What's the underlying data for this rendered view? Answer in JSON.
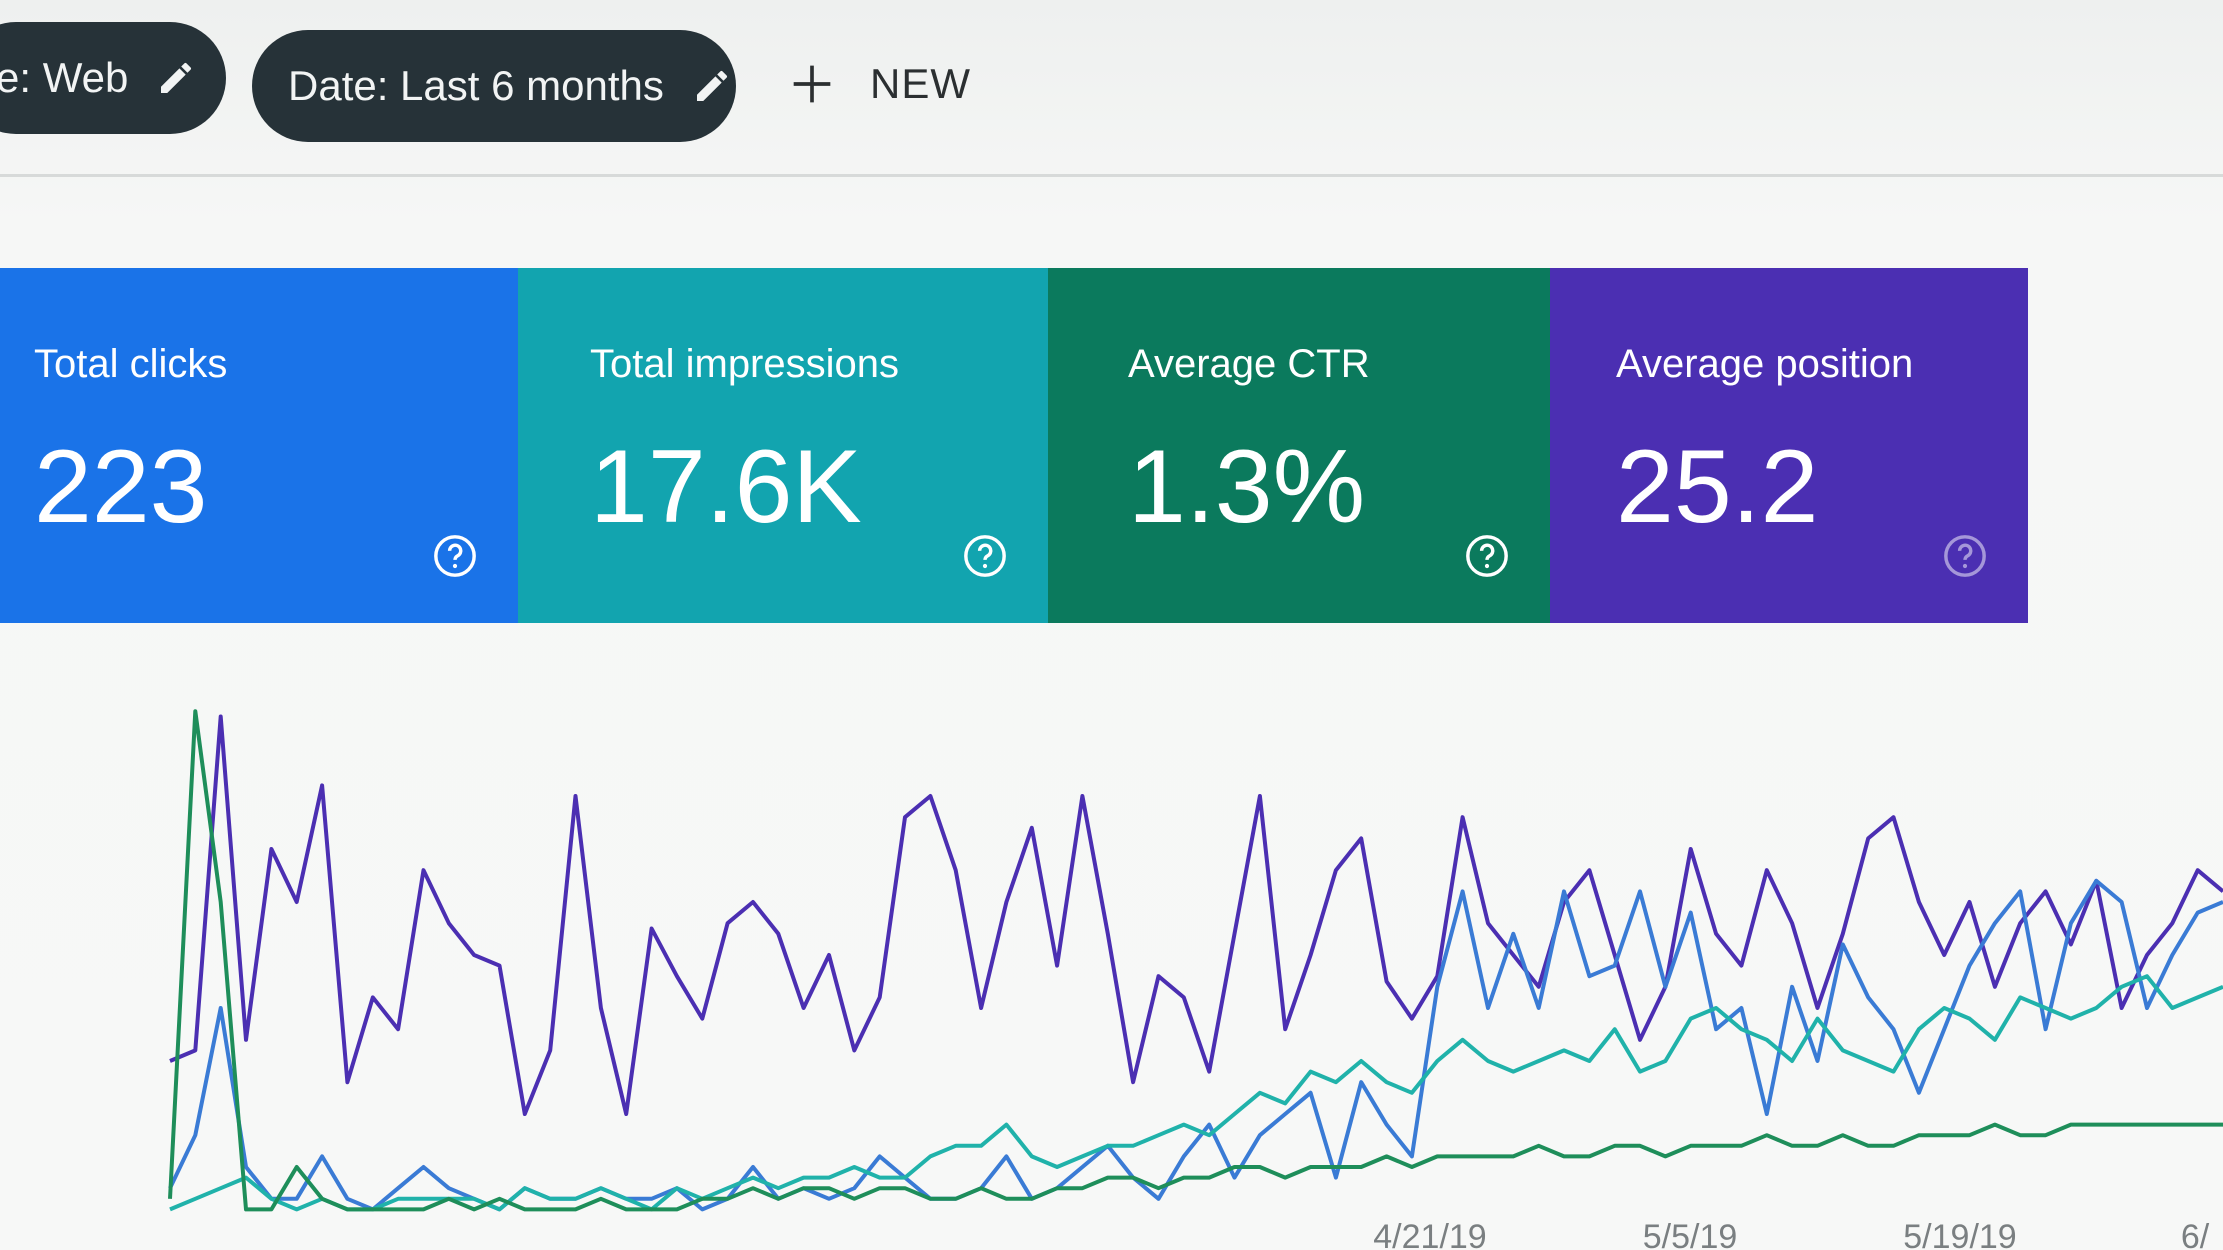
{
  "filters": {
    "type_chip": "e: Web",
    "date_chip": "Date: Last 6 months",
    "new_label": "NEW"
  },
  "metrics": [
    {
      "label": "Total clicks",
      "value": "223",
      "color": "#1a73e8"
    },
    {
      "label": "Total impressions",
      "value": "17.6K",
      "color": "#12a4af"
    },
    {
      "label": "Average CTR",
      "value": "1.3%",
      "color": "#0b7a5d"
    },
    {
      "label": "Average position",
      "value": "25.2",
      "color": "#4b2fb2"
    }
  ],
  "chart_data": {
    "type": "line",
    "x_tick_labels": [
      "4/21/19",
      "5/5/19",
      "5/19/19",
      "6/"
    ],
    "series": [
      {
        "color": "#4b2fb2",
        "values": [
          30,
          32,
          95,
          34,
          70,
          60,
          82,
          26,
          42,
          36,
          66,
          56,
          50,
          48,
          20,
          32,
          80,
          40,
          20,
          55,
          46,
          38,
          56,
          60,
          54,
          40,
          50,
          32,
          42,
          76,
          80,
          66,
          40,
          60,
          74,
          48,
          80,
          54,
          26,
          46,
          42,
          28,
          54,
          80,
          36,
          50,
          66,
          72,
          45,
          38,
          46,
          76,
          56,
          50,
          44,
          60,
          66,
          50,
          34,
          44,
          70,
          54,
          48,
          66,
          56,
          40,
          54,
          72,
          76,
          60,
          50,
          60,
          44,
          56,
          62,
          52,
          64,
          40,
          50,
          56,
          66,
          62
        ]
      },
      {
        "color": "#3a7bd5",
        "values": [
          6,
          16,
          40,
          10,
          4,
          4,
          12,
          4,
          2,
          6,
          10,
          6,
          4,
          2,
          6,
          4,
          4,
          6,
          4,
          4,
          6,
          2,
          4,
          10,
          4,
          6,
          4,
          6,
          12,
          8,
          4,
          4,
          6,
          12,
          4,
          6,
          10,
          14,
          8,
          4,
          12,
          18,
          8,
          16,
          20,
          24,
          8,
          26,
          18,
          12,
          44,
          62,
          40,
          54,
          40,
          62,
          46,
          48,
          62,
          44,
          58,
          36,
          40,
          20,
          44,
          30,
          52,
          42,
          36,
          24,
          36,
          48,
          56,
          62,
          36,
          56,
          64,
          60,
          40,
          50,
          58,
          60
        ]
      },
      {
        "color": "#20b2aa",
        "values": [
          2,
          4,
          6,
          8,
          4,
          2,
          4,
          2,
          2,
          4,
          4,
          4,
          4,
          2,
          6,
          4,
          4,
          6,
          4,
          2,
          6,
          4,
          6,
          8,
          6,
          8,
          8,
          10,
          8,
          8,
          12,
          14,
          14,
          18,
          12,
          10,
          12,
          14,
          14,
          16,
          18,
          16,
          20,
          24,
          22,
          28,
          26,
          30,
          26,
          24,
          30,
          34,
          30,
          28,
          30,
          32,
          30,
          36,
          28,
          30,
          38,
          40,
          36,
          34,
          30,
          38,
          32,
          30,
          28,
          36,
          40,
          38,
          34,
          42,
          40,
          38,
          40,
          44,
          46,
          40,
          42,
          44
        ]
      },
      {
        "color": "#1e8e5a",
        "values": [
          4,
          96,
          60,
          2,
          2,
          10,
          4,
          2,
          2,
          2,
          2,
          4,
          2,
          4,
          2,
          2,
          2,
          4,
          2,
          2,
          2,
          4,
          4,
          6,
          4,
          6,
          6,
          4,
          6,
          6,
          4,
          4,
          6,
          4,
          4,
          6,
          6,
          8,
          8,
          6,
          8,
          8,
          10,
          10,
          8,
          10,
          10,
          10,
          12,
          10,
          12,
          12,
          12,
          12,
          14,
          12,
          12,
          14,
          14,
          12,
          14,
          14,
          14,
          16,
          14,
          14,
          16,
          14,
          14,
          16,
          16,
          16,
          18,
          16,
          16,
          18,
          18,
          18,
          18,
          18,
          18,
          18
        ]
      }
    ]
  }
}
